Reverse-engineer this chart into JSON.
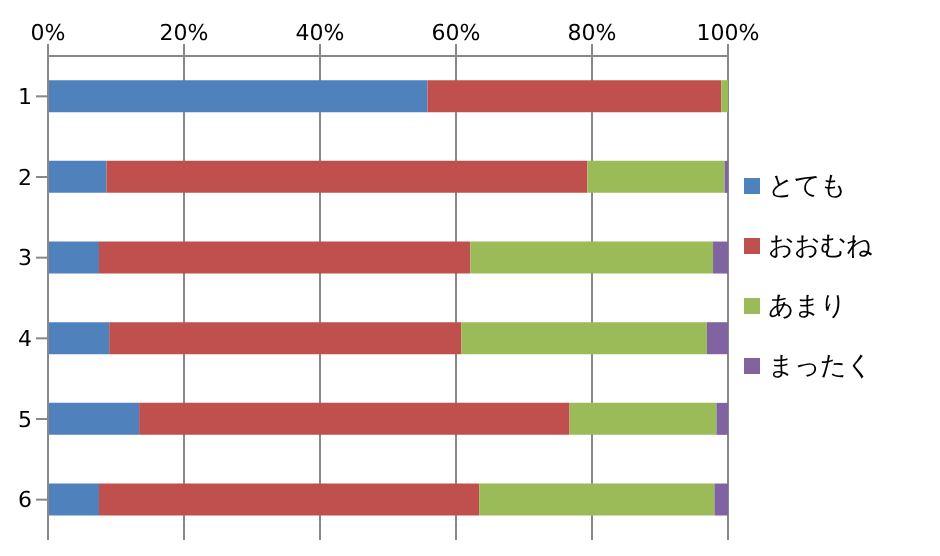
{
  "chart_data": {
    "type": "bar",
    "orientation": "horizontal",
    "stacked": true,
    "categories": [
      "1",
      "2",
      "3",
      "4",
      "5",
      "6"
    ],
    "series": [
      {
        "name": "とても",
        "color": "#4f81bd",
        "values": [
          55.8,
          8.6,
          7.5,
          9.0,
          13.4,
          7.5
        ]
      },
      {
        "name": "おおむね",
        "color": "#c0504d",
        "values": [
          43.2,
          70.7,
          54.6,
          51.8,
          63.3,
          55.9
        ]
      },
      {
        "name": "あまり",
        "color": "#9bbb59",
        "values": [
          1.0,
          20.2,
          35.7,
          36.1,
          21.6,
          34.6
        ]
      },
      {
        "name": "まったく",
        "color": "#8064a2",
        "values": [
          0,
          0.5,
          2.2,
          3.1,
          1.7,
          2.0
        ]
      }
    ],
    "xlim": [
      0,
      100
    ],
    "xticks": [
      {
        "value": 0,
        "label": "0%"
      },
      {
        "value": 20,
        "label": "20%"
      },
      {
        "value": 40,
        "label": "40%"
      },
      {
        "value": 60,
        "label": "60%"
      },
      {
        "value": 80,
        "label": "80%"
      },
      {
        "value": 100,
        "label": "100%"
      }
    ],
    "grid": "x",
    "legend": "right"
  }
}
